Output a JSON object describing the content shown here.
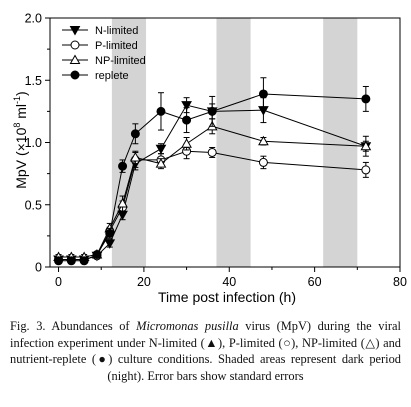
{
  "chart_data": {
    "type": "line",
    "xlabel": "Time post infection (h)",
    "ylabel": "MpV (×10",
    "ylabel_exp": "8",
    "ylabel_unit": "ml",
    "ylabel_unit_exp": "-1",
    "ylabel_close": ")",
    "xlim": [
      -2,
      80
    ],
    "ylim": [
      0,
      2.0
    ],
    "xticks": [
      0,
      20,
      40,
      60,
      80
    ],
    "yticks": [
      0,
      0.5,
      1.0,
      1.5,
      2.0
    ],
    "xtick_labels": [
      "0",
      "20",
      "40",
      "60",
      "80"
    ],
    "ytick_labels": [
      "0",
      "0.5",
      "1.0",
      "1.5",
      "2.0"
    ],
    "grid": false,
    "legend_position": "top-left",
    "dark_periods": [
      [
        12.5,
        20.5
      ],
      [
        37,
        45
      ],
      [
        62,
        70
      ]
    ],
    "series": [
      {
        "name": "N-limited",
        "marker": "triangle-down-filled",
        "x": [
          0,
          3,
          6,
          9,
          12,
          15,
          18,
          24,
          30,
          36,
          48,
          72
        ],
        "y": [
          0.06,
          0.06,
          0.06,
          0.09,
          0.19,
          0.42,
          0.83,
          0.95,
          1.3,
          1.25,
          1.26,
          0.97
        ],
        "err": [
          0.02,
          0.02,
          0.02,
          0.02,
          0.03,
          0.04,
          0.05,
          0.04,
          0.06,
          0.06,
          0.1,
          0.08
        ]
      },
      {
        "name": "P-limited",
        "marker": "circle-open",
        "x": [
          0,
          3,
          6,
          9,
          12,
          15,
          18,
          24,
          30,
          36,
          48,
          72
        ],
        "y": [
          0.06,
          0.06,
          0.06,
          0.09,
          0.29,
          0.48,
          0.86,
          0.86,
          0.93,
          0.92,
          0.84,
          0.78
        ],
        "err": [
          0.02,
          0.02,
          0.02,
          0.02,
          0.03,
          0.05,
          0.06,
          0.05,
          0.06,
          0.04,
          0.05,
          0.06
        ]
      },
      {
        "name": "NP-limited",
        "marker": "triangle-up-open",
        "x": [
          0,
          3,
          6,
          9,
          12,
          15,
          18,
          24,
          30,
          36,
          48,
          72
        ],
        "y": [
          0.08,
          0.08,
          0.08,
          0.1,
          0.31,
          0.51,
          0.88,
          0.83,
          0.99,
          1.13,
          1.01,
          0.97
        ],
        "err": [
          0.02,
          0.02,
          0.02,
          0.02,
          0.04,
          0.06,
          0.05,
          0.04,
          0.05,
          0.06,
          0.03,
          0.04
        ]
      },
      {
        "name": "replete",
        "marker": "circle-filled",
        "x": [
          0,
          3,
          6,
          9,
          12,
          15,
          18,
          24,
          30,
          36,
          48,
          72
        ],
        "y": [
          0.05,
          0.05,
          0.05,
          0.1,
          0.27,
          0.81,
          1.07,
          1.25,
          1.18,
          1.25,
          1.39,
          1.35
        ],
        "err": [
          0.01,
          0.01,
          0.01,
          0.02,
          0.04,
          0.05,
          0.08,
          0.15,
          0.1,
          0.12,
          0.13,
          0.1
        ]
      }
    ]
  },
  "caption": {
    "part1": "Fig. 3. Abundances of ",
    "species": "Micromonas pusilla",
    "part2": " virus (MpV) during the viral infection experiment under N-limited (▲), P-limited (○), NP-limited (△) and nutrient-replete (●) culture conditions. Shaded areas represent dark period (night). Error bars show standard errors"
  }
}
